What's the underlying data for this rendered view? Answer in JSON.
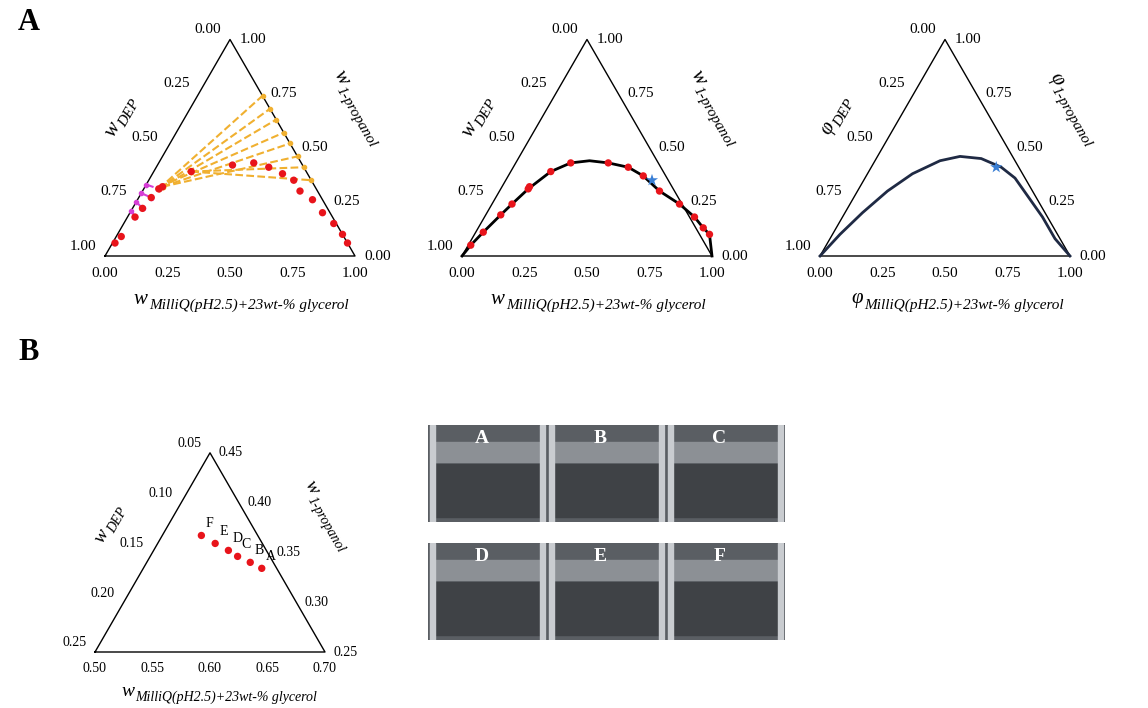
{
  "chart_data": [
    {
      "type": "ternary",
      "axis_labels": {
        "bottom": {
          "main": "w",
          "sub": "MilliQ(pH2.5)+23wt-% glycerol"
        },
        "left": {
          "main": "w",
          "sub": "DEP"
        },
        "right": {
          "main": "w",
          "sub": "1-propanol"
        }
      },
      "limits": {
        "bottom": [
          0,
          1
        ],
        "left": [
          0,
          1
        ],
        "right": [
          0,
          1
        ]
      },
      "ticks": {
        "bottom": [
          {
            "value": 0,
            "label": "0.00"
          },
          {
            "value": 0.25,
            "label": "0.25"
          },
          {
            "value": 0.5,
            "label": "0.50"
          },
          {
            "value": 0.75,
            "label": "0.75"
          },
          {
            "value": 1,
            "label": "1.00"
          }
        ],
        "left": [
          {
            "value": 0,
            "label": "0.00"
          },
          {
            "value": 0.25,
            "label": "0.25"
          },
          {
            "value": 0.5,
            "label": "0.50"
          },
          {
            "value": 0.75,
            "label": "0.75"
          },
          {
            "value": 1,
            "label": "1.00"
          }
        ],
        "right": [
          {
            "value": 0,
            "label": "0.00"
          },
          {
            "value": 0.25,
            "label": "0.25"
          },
          {
            "value": 0.5,
            "label": "0.50"
          },
          {
            "value": 0.75,
            "label": "0.75"
          },
          {
            "value": 1,
            "label": "1.00"
          }
        ]
      },
      "series": [
        {
          "type": "tie_lines",
          "color": "#f0b030",
          "line_style": "dashed",
          "marker": "o",
          "water_start": [
            0.06,
            0.06,
            0.06,
            0.06,
            0.07,
            0.07,
            0.15,
            0.15
          ],
          "propanol_start": [
            0.31,
            0.31,
            0.31,
            0.32,
            0.32,
            0.32,
            0.39,
            0.39
          ],
          "water_end": [
            0.26,
            0.32,
            0.37,
            0.43,
            0.48,
            0.54,
            0.59,
            0.65
          ],
          "propanol_end": [
            0.74,
            0.68,
            0.63,
            0.57,
            0.52,
            0.46,
            0.41,
            0.35
          ]
        },
        {
          "type": "tie_lines",
          "color": "#d63fd6",
          "line_style": "dashed",
          "marker": "o",
          "water_start": [
            0,
            0,
            0,
            0
          ],
          "propanol_start": [
            0.33,
            0.29,
            0.25,
            0.21
          ],
          "water_end": [
            0.06,
            0.05,
            0.04,
            0.03
          ],
          "propanol_end": [
            0.31,
            0.27,
            0.22,
            0.18
          ]
        },
        {
          "type": "scatter",
          "color": "#e8141b",
          "marker": "o",
          "water": [
            0.01,
            0.02,
            0.03,
            0.04,
            0.05,
            0.06,
            0.07,
            0.15,
            0.3,
            0.38,
            0.45,
            0.52,
            0.58,
            0.63,
            0.7,
            0.77,
            0.84,
            0.9,
            0.94
          ],
          "propanol": [
            0.06,
            0.09,
            0.18,
            0.22,
            0.27,
            0.31,
            0.32,
            0.39,
            0.42,
            0.43,
            0.41,
            0.38,
            0.35,
            0.3,
            0.26,
            0.2,
            0.15,
            0.1,
            0.06
          ]
        }
      ]
    },
    {
      "type": "ternary",
      "axis_labels": {
        "bottom": {
          "main": "w",
          "sub": "MilliQ(pH2.5)+23wt-% glycerol"
        },
        "left": {
          "main": "w",
          "sub": "DEP"
        },
        "right": {
          "main": "w",
          "sub": "1-propanol"
        }
      },
      "limits": {
        "bottom": [
          0,
          1
        ],
        "left": [
          0,
          1
        ],
        "right": [
          0,
          1
        ]
      },
      "ticks": {
        "bottom": [
          {
            "value": 0,
            "label": "0.00"
          },
          {
            "value": 0.25,
            "label": "0.25"
          },
          {
            "value": 0.5,
            "label": "0.50"
          },
          {
            "value": 0.75,
            "label": "0.75"
          },
          {
            "value": 1,
            "label": "1.00"
          }
        ],
        "left": [
          {
            "value": 0,
            "label": "0.00"
          },
          {
            "value": 0.25,
            "label": "0.25"
          },
          {
            "value": 0.5,
            "label": "0.50"
          },
          {
            "value": 0.75,
            "label": "0.75"
          },
          {
            "value": 1,
            "label": "1.00"
          }
        ],
        "right": [
          {
            "value": 0,
            "label": "0.00"
          },
          {
            "value": 0.25,
            "label": "0.25"
          },
          {
            "value": 0.5,
            "label": "0.50"
          },
          {
            "value": 0.75,
            "label": "0.75"
          },
          {
            "value": 1,
            "label": "1.00"
          }
        ]
      },
      "series": [
        {
          "type": "line",
          "color": "#000000",
          "line_style": "solid",
          "water": [
            0,
            0.01,
            0.03,
            0.06,
            0.08,
            0.11,
            0.16,
            0.22,
            0.29,
            0.37,
            0.46,
            0.54,
            0.64,
            0.75,
            0.84,
            0.9,
            0.94,
            1
          ],
          "propanol": [
            0,
            0.05,
            0.11,
            0.19,
            0.24,
            0.31,
            0.39,
            0.43,
            0.44,
            0.43,
            0.41,
            0.37,
            0.3,
            0.24,
            0.18,
            0.13,
            0.1,
            0
          ]
        },
        {
          "type": "scatter",
          "color": "#e8141b",
          "marker": "o",
          "water": [
            0.01,
            0.03,
            0.06,
            0.08,
            0.11,
            0.11,
            0.16,
            0.22,
            0.37,
            0.46,
            0.54,
            0.64,
            0.75,
            0.84,
            0.9,
            0.94
          ],
          "propanol": [
            0.05,
            0.11,
            0.19,
            0.24,
            0.31,
            0.32,
            0.39,
            0.43,
            0.43,
            0.41,
            0.37,
            0.3,
            0.24,
            0.18,
            0.13,
            0.1
          ]
        },
        {
          "type": "scatter",
          "color": "#3a7fd5",
          "marker": "star",
          "water": [
            0.585
          ],
          "propanol": [
            0.35
          ]
        }
      ]
    },
    {
      "type": "ternary",
      "axis_labels": {
        "bottom": {
          "main": "φ",
          "sub": "MilliQ(pH2.5)+23wt-% glycerol"
        },
        "left": {
          "main": "φ",
          "sub": "DEP"
        },
        "right": {
          "main": "φ",
          "sub": "1-propanol"
        }
      },
      "limits": {
        "bottom": [
          0,
          1
        ],
        "left": [
          0,
          1
        ],
        "right": [
          0,
          1
        ]
      },
      "ticks": {
        "bottom": [
          {
            "value": 0,
            "label": "0.00"
          },
          {
            "value": 0.25,
            "label": "0.25"
          },
          {
            "value": 0.5,
            "label": "0.50"
          },
          {
            "value": 0.75,
            "label": "0.75"
          },
          {
            "value": 1,
            "label": "1.00"
          }
        ],
        "left": [
          {
            "value": 0,
            "label": "0.00"
          },
          {
            "value": 0.25,
            "label": "0.25"
          },
          {
            "value": 0.5,
            "label": "0.50"
          },
          {
            "value": 0.75,
            "label": "0.75"
          },
          {
            "value": 1,
            "label": "1.00"
          }
        ],
        "right": [
          {
            "value": 0,
            "label": "0.00"
          },
          {
            "value": 0.25,
            "label": "0.25"
          },
          {
            "value": 0.5,
            "label": "0.50"
          },
          {
            "value": 0.75,
            "label": "0.75"
          },
          {
            "value": 1,
            "label": "1.00"
          }
        ]
      },
      "series": [
        {
          "type": "line",
          "color": "#1f2a44",
          "line_style": "solid",
          "water": [
            0,
            0.03,
            0.07,
            0.12,
            0.18,
            0.26,
            0.33,
            0.42,
            0.52,
            0.6,
            0.7,
            0.8,
            0.9,
            1
          ],
          "propanol": [
            0,
            0.1,
            0.2,
            0.3,
            0.38,
            0.44,
            0.46,
            0.45,
            0.41,
            0.36,
            0.27,
            0.18,
            0.08,
            0
          ]
        },
        {
          "type": "scatter",
          "color": "#3a7fd5",
          "marker": "star",
          "water": [
            0.5
          ],
          "propanol": [
            0.41
          ]
        }
      ]
    },
    {
      "type": "ternary",
      "axis_labels": {
        "bottom": {
          "main": "w",
          "sub": "MilliQ(pH2.5)+23wt-% glycerol"
        },
        "left": {
          "main": "w",
          "sub": "DEP"
        },
        "right": {
          "main": "w",
          "sub": "1-propanol"
        }
      },
      "limits": {
        "bottom": [
          0.5,
          0.7
        ],
        "left": [
          0.05,
          0.25
        ],
        "right": [
          0.25,
          0.45
        ]
      },
      "ticks": {
        "bottom": [
          {
            "value": 0.5,
            "label": "0.50"
          },
          {
            "value": 0.55,
            "label": "0.55"
          },
          {
            "value": 0.6,
            "label": "0.60"
          },
          {
            "value": 0.65,
            "label": "0.65"
          },
          {
            "value": 0.7,
            "label": "0.70"
          }
        ],
        "left": [
          {
            "value": 0.05,
            "label": "0.05"
          },
          {
            "value": 0.1,
            "label": "0.10"
          },
          {
            "value": 0.15,
            "label": "0.15"
          },
          {
            "value": 0.2,
            "label": "0.20"
          },
          {
            "value": 0.25,
            "label": "0.25"
          }
        ],
        "right": [
          {
            "value": 0.25,
            "label": "0.25"
          },
          {
            "value": 0.3,
            "label": "0.30"
          },
          {
            "value": 0.35,
            "label": "0.35"
          },
          {
            "value": 0.4,
            "label": "0.40"
          },
          {
            "value": 0.45,
            "label": "0.45"
          }
        ]
      },
      "series": [
        {
          "type": "scatter",
          "color": "#e8141b",
          "marker": "o",
          "water": [
            0.603,
            0.59,
            0.576,
            0.565,
            0.55,
            0.534
          ],
          "propanol": [
            0.334,
            0.34,
            0.346,
            0.352,
            0.359,
            0.367
          ],
          "point_labels": [
            "A",
            "B",
            "C",
            "D",
            "E",
            "F"
          ]
        }
      ]
    }
  ],
  "panel_labels": [
    "A",
    "B"
  ],
  "photos": {
    "rows": [
      [
        "A",
        "B",
        "C"
      ],
      [
        "D",
        "E",
        "F"
      ]
    ]
  }
}
